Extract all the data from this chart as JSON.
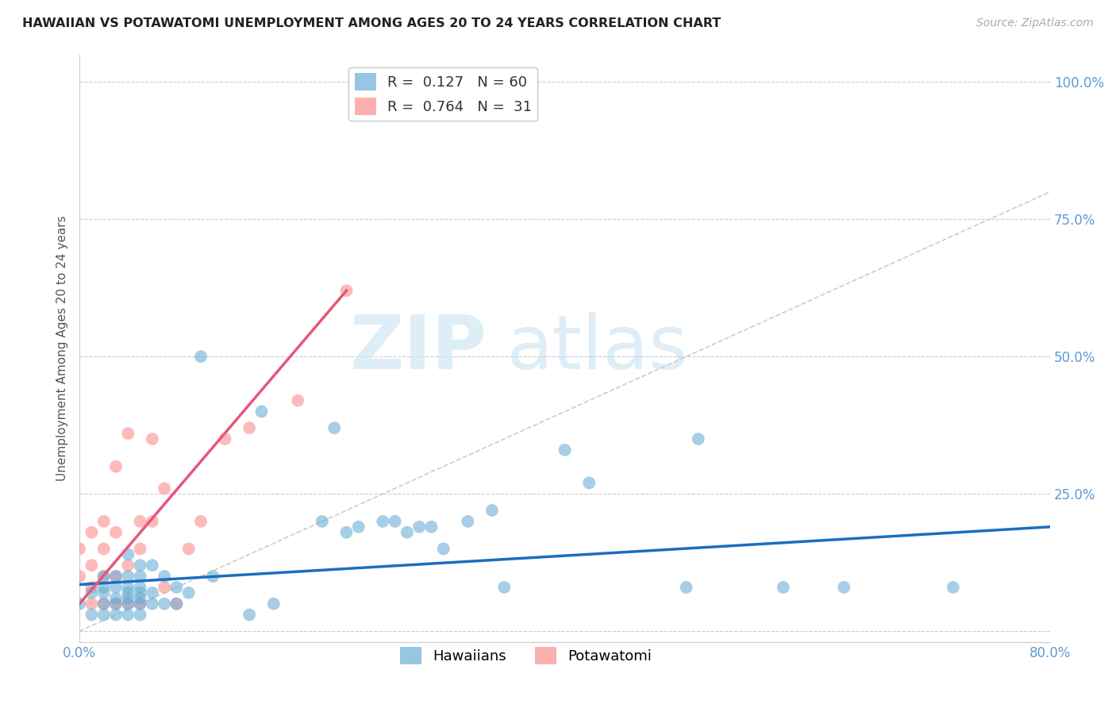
{
  "title": "HAWAIIAN VS POTAWATOMI UNEMPLOYMENT AMONG AGES 20 TO 24 YEARS CORRELATION CHART",
  "source": "Source: ZipAtlas.com",
  "ylabel": "Unemployment Among Ages 20 to 24 years",
  "xlim": [
    0.0,
    0.8
  ],
  "ylim": [
    -0.02,
    1.05
  ],
  "xticks": [
    0.0,
    0.1,
    0.2,
    0.3,
    0.4,
    0.5,
    0.6,
    0.7,
    0.8
  ],
  "xticklabels": [
    "0.0%",
    "",
    "",
    "",
    "",
    "",
    "",
    "",
    "80.0%"
  ],
  "yticks": [
    0.0,
    0.25,
    0.5,
    0.75,
    1.0
  ],
  "yticklabels": [
    "",
    "25.0%",
    "50.0%",
    "75.0%",
    "100.0%"
  ],
  "hawaiians_R": 0.127,
  "hawaiians_N": 60,
  "potawatomi_R": 0.764,
  "potawatomi_N": 31,
  "hawaiians_color": "#6baed6",
  "potawatomi_color": "#fc8d8d",
  "hawaiians_line_color": "#1a6fbd",
  "potawatomi_line_color": "#e8567a",
  "diagonal_color": "#cccccc",
  "hawaiians_x": [
    0.0,
    0.01,
    0.01,
    0.02,
    0.02,
    0.02,
    0.02,
    0.02,
    0.03,
    0.03,
    0.03,
    0.03,
    0.03,
    0.04,
    0.04,
    0.04,
    0.04,
    0.04,
    0.04,
    0.04,
    0.05,
    0.05,
    0.05,
    0.05,
    0.05,
    0.05,
    0.05,
    0.06,
    0.06,
    0.06,
    0.07,
    0.07,
    0.08,
    0.08,
    0.09,
    0.1,
    0.11,
    0.14,
    0.15,
    0.16,
    0.2,
    0.21,
    0.22,
    0.23,
    0.25,
    0.26,
    0.27,
    0.28,
    0.29,
    0.3,
    0.32,
    0.34,
    0.35,
    0.4,
    0.42,
    0.5,
    0.51,
    0.58,
    0.63,
    0.72
  ],
  "hawaiians_y": [
    0.05,
    0.03,
    0.07,
    0.03,
    0.05,
    0.07,
    0.08,
    0.1,
    0.03,
    0.05,
    0.06,
    0.08,
    0.1,
    0.03,
    0.05,
    0.06,
    0.07,
    0.08,
    0.1,
    0.14,
    0.03,
    0.05,
    0.06,
    0.07,
    0.08,
    0.1,
    0.12,
    0.05,
    0.07,
    0.12,
    0.05,
    0.1,
    0.05,
    0.08,
    0.07,
    0.5,
    0.1,
    0.03,
    0.4,
    0.05,
    0.2,
    0.37,
    0.18,
    0.19,
    0.2,
    0.2,
    0.18,
    0.19,
    0.19,
    0.15,
    0.2,
    0.22,
    0.08,
    0.33,
    0.27,
    0.08,
    0.35,
    0.08,
    0.08,
    0.08
  ],
  "potawatomi_x": [
    0.0,
    0.0,
    0.01,
    0.01,
    0.01,
    0.01,
    0.02,
    0.02,
    0.02,
    0.02,
    0.03,
    0.03,
    0.03,
    0.03,
    0.04,
    0.04,
    0.04,
    0.05,
    0.05,
    0.05,
    0.06,
    0.06,
    0.07,
    0.07,
    0.08,
    0.09,
    0.1,
    0.12,
    0.14,
    0.18,
    0.22
  ],
  "potawatomi_y": [
    0.1,
    0.15,
    0.05,
    0.08,
    0.12,
    0.18,
    0.05,
    0.1,
    0.15,
    0.2,
    0.05,
    0.1,
    0.18,
    0.3,
    0.05,
    0.12,
    0.36,
    0.05,
    0.15,
    0.2,
    0.2,
    0.35,
    0.08,
    0.26,
    0.05,
    0.15,
    0.2,
    0.35,
    0.37,
    0.42,
    0.62
  ],
  "hawaiians_line_x": [
    0.0,
    0.8
  ],
  "hawaiians_line_y": [
    0.085,
    0.19
  ],
  "potawatomi_line_x": [
    0.0,
    0.22
  ],
  "potawatomi_line_y": [
    0.05,
    0.62
  ]
}
